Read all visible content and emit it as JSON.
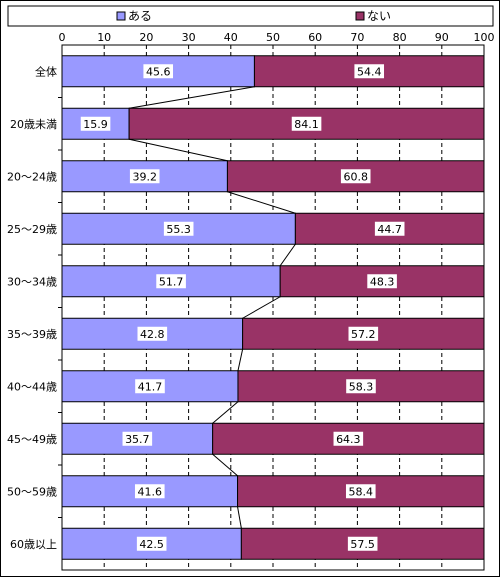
{
  "chart_data": {
    "type": "bar",
    "orientation": "horizontal",
    "stacked": true,
    "percent_stacked": true,
    "categories": [
      "全体",
      "20歳未満",
      "20～24歳",
      "25～29歳",
      "30～34歳",
      "35～39歳",
      "40～44歳",
      "45～49歳",
      "50～59歳",
      "60歳以上"
    ],
    "series": [
      {
        "name": "ある",
        "color": "#9999ff",
        "values": [
          45.6,
          15.9,
          39.2,
          55.3,
          51.7,
          42.8,
          41.7,
          35.7,
          41.6,
          42.5
        ]
      },
      {
        "name": "ない",
        "color": "#993366",
        "values": [
          54.4,
          84.1,
          60.8,
          44.7,
          48.3,
          57.2,
          58.3,
          64.3,
          58.4,
          57.5
        ]
      }
    ],
    "x_ticks": [
      "0",
      "10",
      "20",
      "30",
      "40",
      "50",
      "60",
      "70",
      "80",
      "90",
      "100"
    ],
    "xlim": [
      0,
      100
    ],
    "grid": "vertical dashed",
    "series_lines": true,
    "legend_position": "top"
  }
}
